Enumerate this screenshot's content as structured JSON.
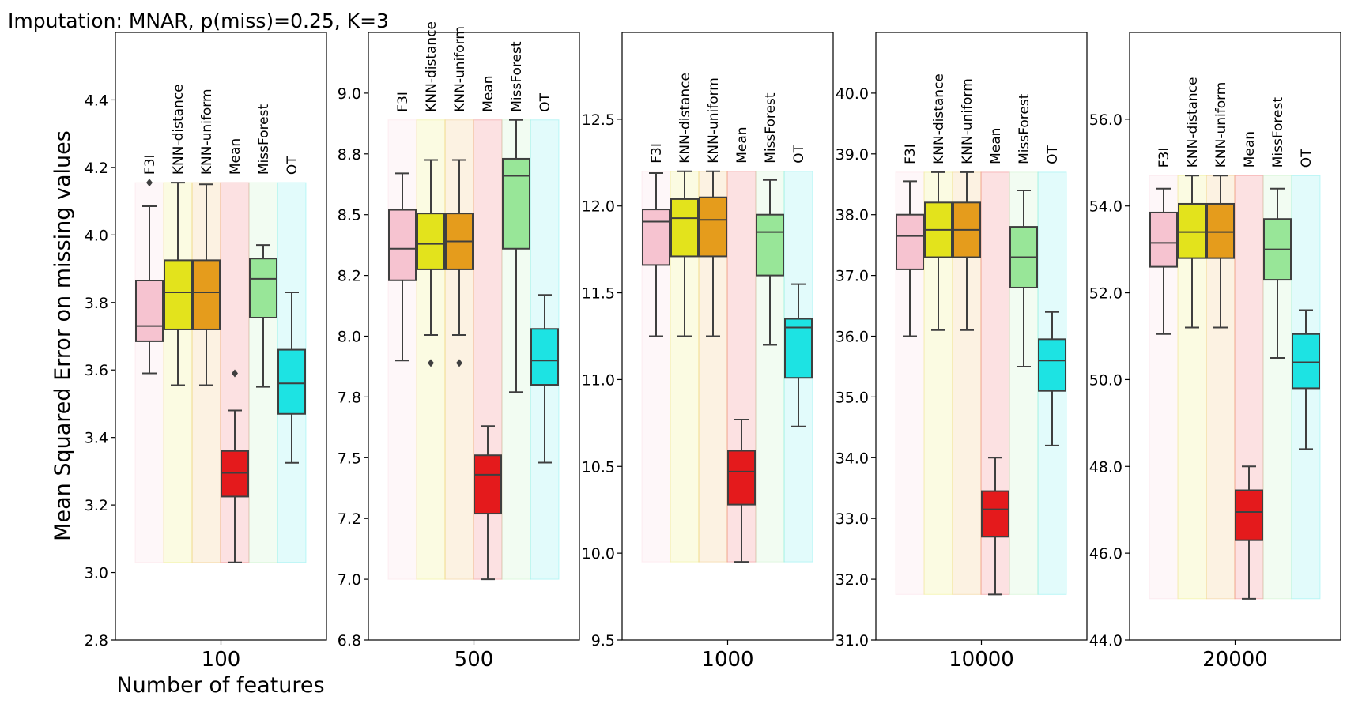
{
  "title": "Imputation: MNAR, p(miss)=0.25, K=3",
  "ylabel": "Mean Squared Error on missing values",
  "xlabel": "Number of features",
  "methods": [
    {
      "name": "F3I",
      "color": "#f6c3d0"
    },
    {
      "name": "KNN-distance",
      "color": "#e3e31c"
    },
    {
      "name": "KNN-uniform",
      "color": "#e59c1c"
    },
    {
      "name": "Mean",
      "color": "#e41a1c"
    },
    {
      "name": "MissForest",
      "color": "#98e698"
    },
    {
      "name": "OT",
      "color": "#1de3e3"
    }
  ],
  "chart_data": [
    {
      "type": "box",
      "category": "100",
      "ylim": [
        2.8,
        4.6
      ],
      "yticks": [
        2.8,
        3.0,
        3.2,
        3.4,
        3.6,
        3.8,
        4.0,
        4.2,
        4.4
      ],
      "decimals": 1,
      "bg_range": [
        3.03,
        4.155
      ],
      "boxes": [
        {
          "method": "F3I",
          "whislo": 3.59,
          "q1": 3.685,
          "med": 3.73,
          "q3": 3.865,
          "whishi": 4.085,
          "fliers": [
            4.155
          ]
        },
        {
          "method": "KNN-distance",
          "whislo": 3.555,
          "q1": 3.72,
          "med": 3.83,
          "q3": 3.925,
          "whishi": 4.155,
          "fliers": []
        },
        {
          "method": "KNN-uniform",
          "whislo": 3.555,
          "q1": 3.72,
          "med": 3.83,
          "q3": 3.925,
          "whishi": 4.15,
          "fliers": []
        },
        {
          "method": "Mean",
          "whislo": 3.03,
          "q1": 3.225,
          "med": 3.295,
          "q3": 3.36,
          "whishi": 3.48,
          "fliers": [
            3.59
          ]
        },
        {
          "method": "MissForest",
          "whislo": 3.55,
          "q1": 3.755,
          "med": 3.87,
          "q3": 3.93,
          "whishi": 3.97,
          "fliers": []
        },
        {
          "method": "OT",
          "whislo": 3.325,
          "q1": 3.47,
          "med": 3.56,
          "q3": 3.66,
          "whishi": 3.83,
          "fliers": []
        }
      ]
    },
    {
      "type": "box",
      "category": "500",
      "ylim": [
        6.75,
        9.25
      ],
      "yticks": [
        6.8,
        7.0,
        7.2,
        7.5,
        7.8,
        8.0,
        8.2,
        8.5,
        8.8,
        9.0
      ],
      "tick_positions": [
        6.75,
        7.0,
        7.25,
        7.5,
        7.75,
        8.0,
        8.25,
        8.5,
        8.75,
        9.0
      ],
      "decimals": 1,
      "bg_range": [
        7.0,
        8.89
      ],
      "boxes": [
        {
          "method": "F3I",
          "whislo": 7.9,
          "q1": 8.23,
          "med": 8.36,
          "q3": 8.52,
          "whishi": 8.67,
          "fliers": []
        },
        {
          "method": "KNN-distance",
          "whislo": 8.005,
          "q1": 8.275,
          "med": 8.38,
          "q3": 8.505,
          "whishi": 8.725,
          "fliers": [
            7.89
          ]
        },
        {
          "method": "KNN-uniform",
          "whislo": 8.005,
          "q1": 8.275,
          "med": 8.39,
          "q3": 8.505,
          "whishi": 8.725,
          "fliers": [
            7.89
          ]
        },
        {
          "method": "Mean",
          "whislo": 7.0,
          "q1": 7.27,
          "med": 7.43,
          "q3": 7.51,
          "whishi": 7.63,
          "fliers": []
        },
        {
          "method": "MissForest",
          "whislo": 7.77,
          "q1": 8.36,
          "med": 8.66,
          "q3": 8.73,
          "whishi": 8.89,
          "fliers": []
        },
        {
          "method": "OT",
          "whislo": 7.48,
          "q1": 7.8,
          "med": 7.9,
          "q3": 8.03,
          "whishi": 8.17,
          "fliers": []
        }
      ]
    },
    {
      "type": "box",
      "category": "1000",
      "ylim": [
        9.5,
        13.0
      ],
      "yticks": [
        9.5,
        10.0,
        10.5,
        11.0,
        11.5,
        12.0,
        12.5
      ],
      "decimals": 1,
      "bg_range": [
        9.95,
        12.2
      ],
      "boxes": [
        {
          "method": "F3I",
          "whislo": 11.25,
          "q1": 11.66,
          "med": 11.91,
          "q3": 11.98,
          "whishi": 12.19,
          "fliers": []
        },
        {
          "method": "KNN-distance",
          "whislo": 11.25,
          "q1": 11.71,
          "med": 11.93,
          "q3": 12.04,
          "whishi": 12.2,
          "fliers": []
        },
        {
          "method": "KNN-uniform",
          "whislo": 11.25,
          "q1": 11.71,
          "med": 11.92,
          "q3": 12.05,
          "whishi": 12.2,
          "fliers": []
        },
        {
          "method": "Mean",
          "whislo": 9.95,
          "q1": 10.28,
          "med": 10.47,
          "q3": 10.59,
          "whishi": 10.77,
          "fliers": []
        },
        {
          "method": "MissForest",
          "whislo": 11.2,
          "q1": 11.6,
          "med": 11.85,
          "q3": 11.95,
          "whishi": 12.15,
          "fliers": []
        },
        {
          "method": "OT",
          "whislo": 10.73,
          "q1": 11.01,
          "med": 11.3,
          "q3": 11.35,
          "whishi": 11.55,
          "fliers": []
        }
      ]
    },
    {
      "type": "box",
      "category": "10000",
      "ylim": [
        31.0,
        41.0
      ],
      "yticks": [
        31.0,
        32.0,
        33.0,
        34.0,
        35.0,
        36.0,
        37.0,
        38.0,
        39.0,
        40.0
      ],
      "decimals": 1,
      "bg_range": [
        31.75,
        38.7
      ],
      "boxes": [
        {
          "method": "F3I",
          "whislo": 36.0,
          "q1": 37.1,
          "med": 37.65,
          "q3": 38.0,
          "whishi": 38.55,
          "fliers": []
        },
        {
          "method": "KNN-distance",
          "whislo": 36.1,
          "q1": 37.3,
          "med": 37.75,
          "q3": 38.2,
          "whishi": 38.7,
          "fliers": []
        },
        {
          "method": "KNN-uniform",
          "whislo": 36.1,
          "q1": 37.3,
          "med": 37.75,
          "q3": 38.2,
          "whishi": 38.7,
          "fliers": []
        },
        {
          "method": "Mean",
          "whislo": 31.75,
          "q1": 32.7,
          "med": 33.15,
          "q3": 33.45,
          "whishi": 34.0,
          "fliers": []
        },
        {
          "method": "MissForest",
          "whislo": 35.5,
          "q1": 36.8,
          "med": 37.3,
          "q3": 37.8,
          "whishi": 38.4,
          "fliers": []
        },
        {
          "method": "OT",
          "whislo": 34.2,
          "q1": 35.1,
          "med": 35.6,
          "q3": 35.95,
          "whishi": 36.4,
          "fliers": []
        }
      ]
    },
    {
      "type": "box",
      "category": "20000",
      "ylim": [
        44.0,
        58.0
      ],
      "yticks": [
        44.0,
        46.0,
        48.0,
        50.0,
        52.0,
        54.0,
        56.0
      ],
      "decimals": 1,
      "bg_range": [
        44.95,
        54.7
      ],
      "boxes": [
        {
          "method": "F3I",
          "whislo": 51.05,
          "q1": 52.6,
          "med": 53.15,
          "q3": 53.85,
          "whishi": 54.4,
          "fliers": []
        },
        {
          "method": "KNN-distance",
          "whislo": 51.2,
          "q1": 52.8,
          "med": 53.4,
          "q3": 54.05,
          "whishi": 54.7,
          "fliers": []
        },
        {
          "method": "KNN-uniform",
          "whislo": 51.2,
          "q1": 52.8,
          "med": 53.4,
          "q3": 54.05,
          "whishi": 54.7,
          "fliers": []
        },
        {
          "method": "Mean",
          "whislo": 44.95,
          "q1": 46.3,
          "med": 46.95,
          "q3": 47.45,
          "whishi": 48.0,
          "fliers": []
        },
        {
          "method": "MissForest",
          "whislo": 50.5,
          "q1": 52.3,
          "med": 53.0,
          "q3": 53.7,
          "whishi": 54.4,
          "fliers": []
        },
        {
          "method": "OT",
          "whislo": 48.4,
          "q1": 49.8,
          "med": 50.4,
          "q3": 51.05,
          "whishi": 51.6,
          "fliers": []
        }
      ]
    }
  ]
}
